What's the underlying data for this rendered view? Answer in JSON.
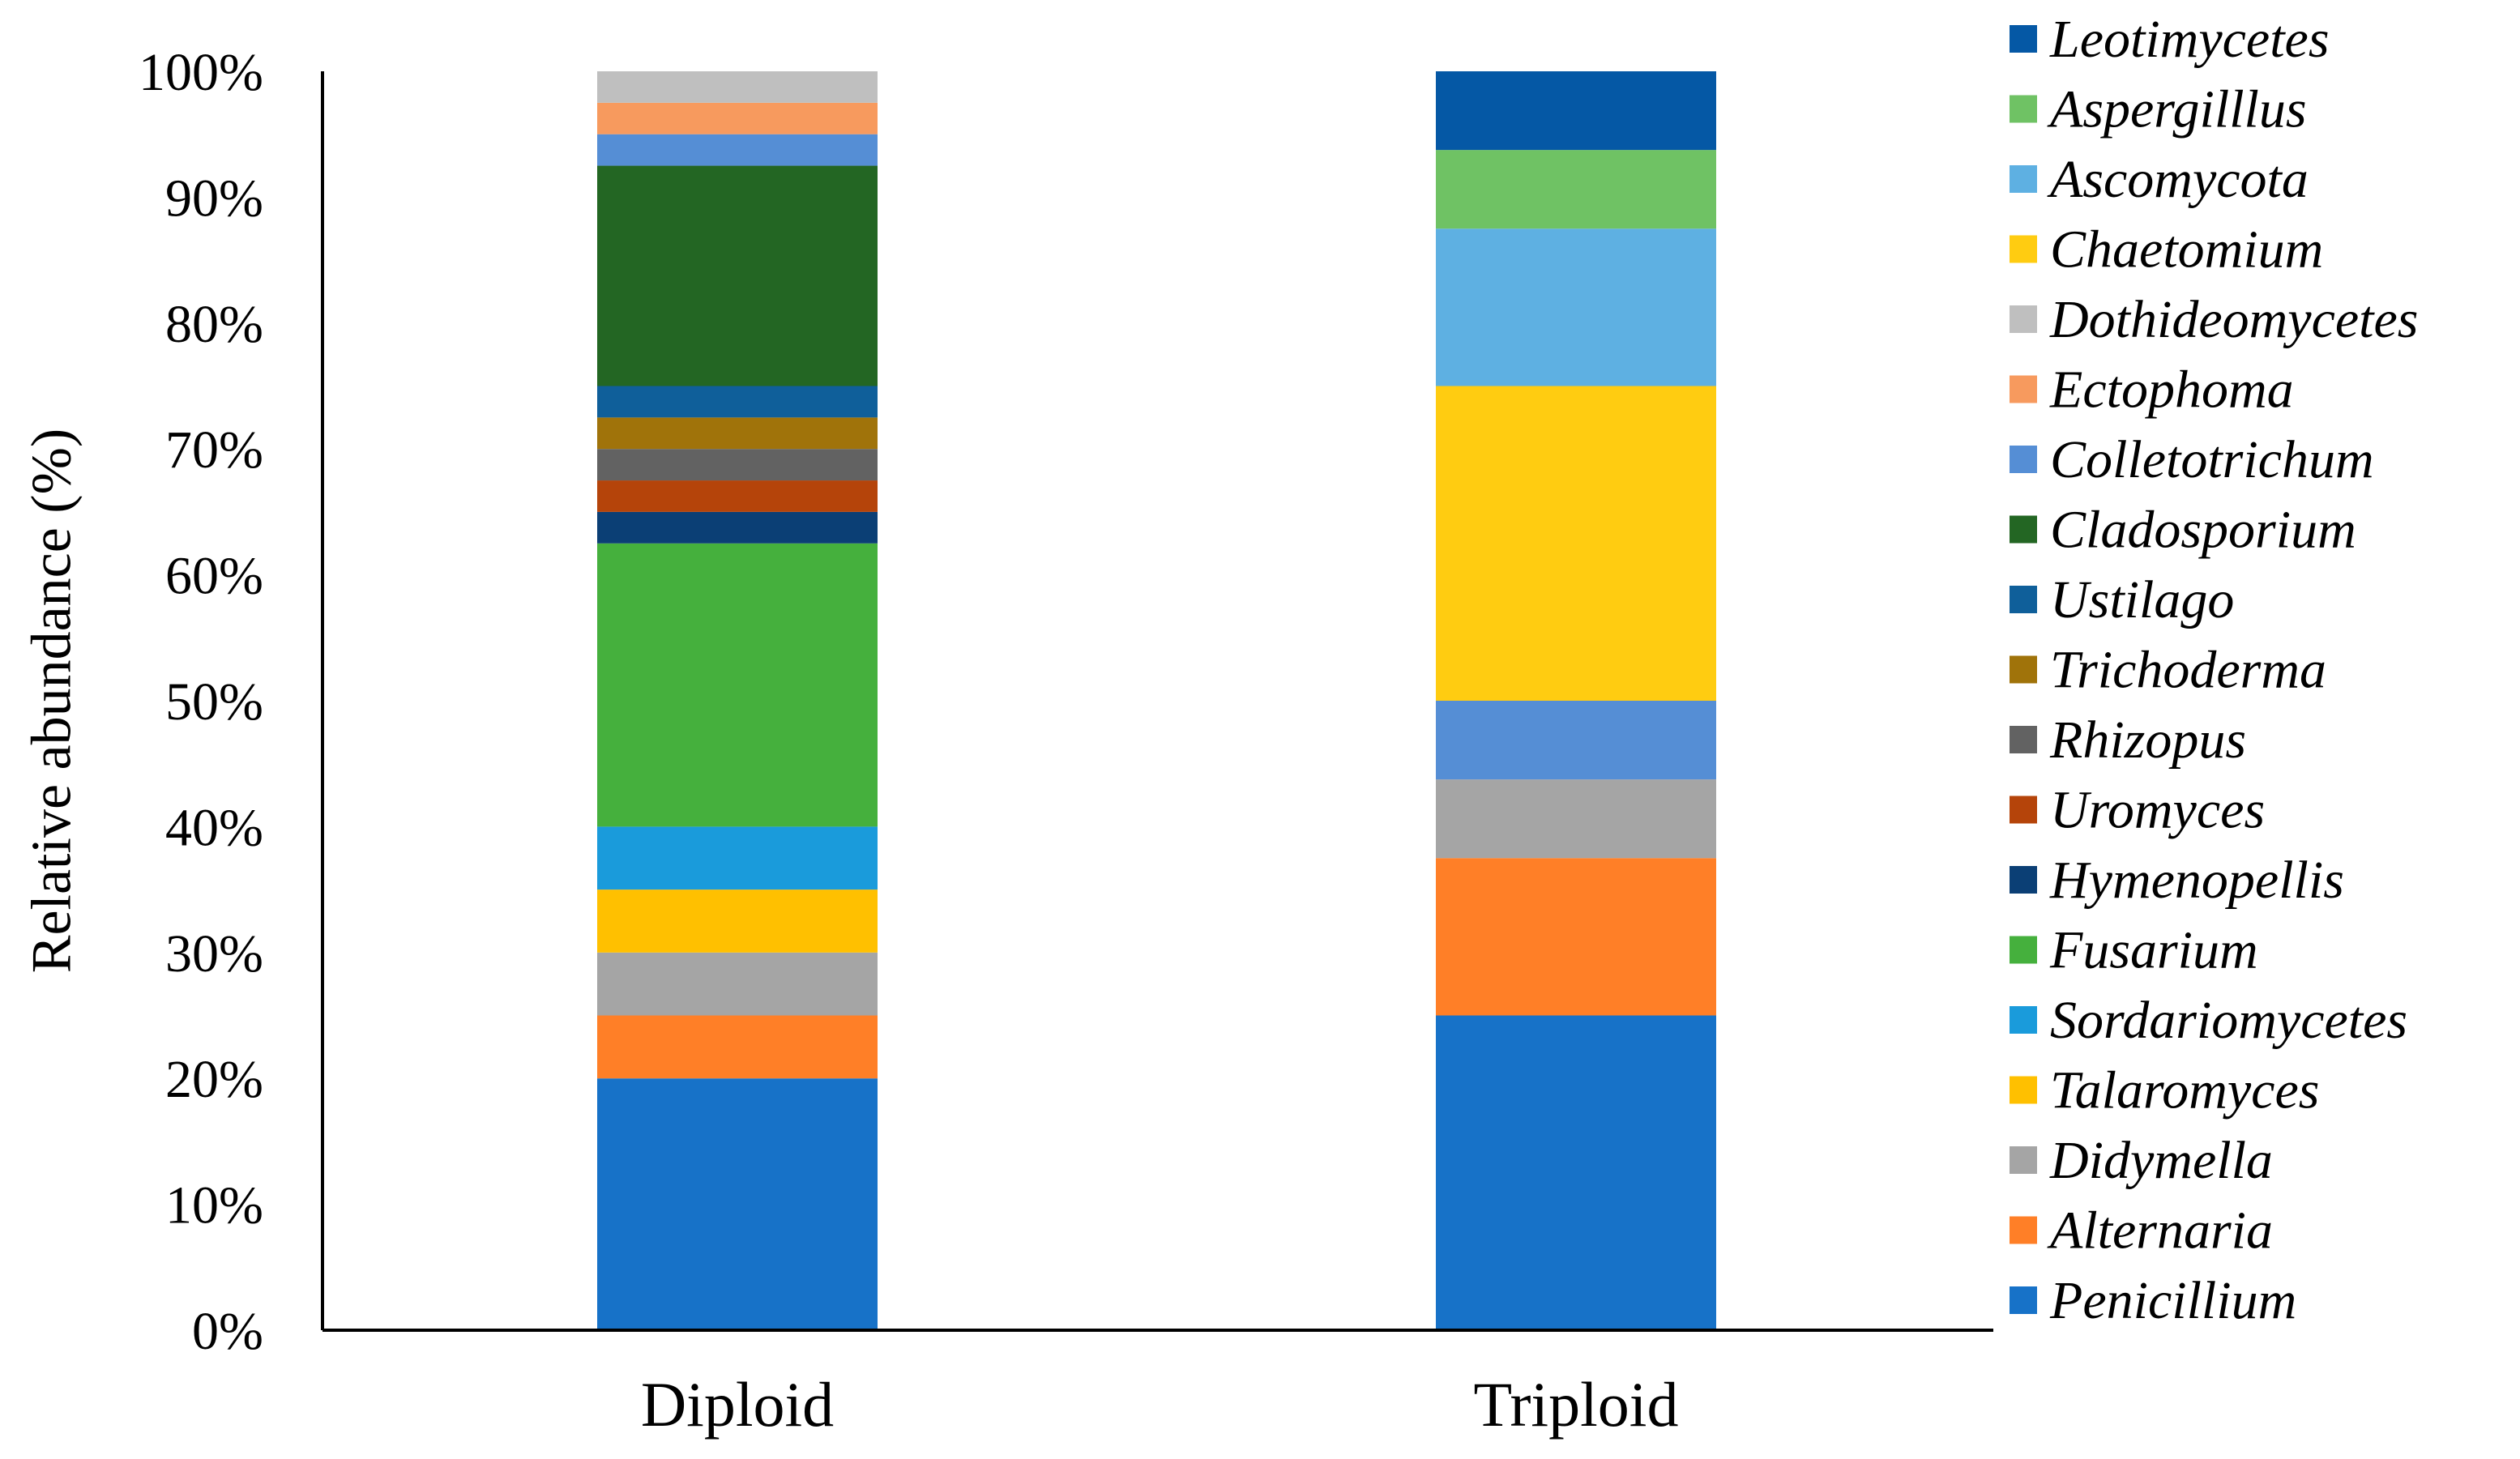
{
  "chart_data": {
    "type": "bar",
    "stacked": true,
    "normalized": true,
    "title": "",
    "xlabel": "",
    "ylabel": "Relative abundance (%)",
    "ylim": [
      0,
      100
    ],
    "yticks": [
      "0%",
      "10%",
      "20%",
      "30%",
      "40%",
      "50%",
      "60%",
      "70%",
      "80%",
      "90%",
      "100%"
    ],
    "grid": false,
    "legend": "right",
    "categories": [
      "Diploid",
      "Triploid"
    ],
    "series": [
      {
        "name": "Penicillium",
        "color": "#1772C8",
        "values": [
          20,
          25
        ]
      },
      {
        "name": "Alternaria",
        "color": "#FF7F27",
        "values": [
          5,
          12.5
        ]
      },
      {
        "name": "Didymella",
        "color": "#A5A5A5",
        "values": [
          5,
          6.25
        ]
      },
      {
        "name": "Talaromyces",
        "color": "#FFC000",
        "values": [
          5,
          0
        ]
      },
      {
        "name": "Sordariomycetes",
        "color": "#1A9BDB",
        "values": [
          5,
          0
        ]
      },
      {
        "name": "Fusarium",
        "color": "#45B03D",
        "values": [
          22.5,
          0
        ]
      },
      {
        "name": "Hymenopellis",
        "color": "#0B3F75",
        "values": [
          2.5,
          0
        ]
      },
      {
        "name": "Uromyces",
        "color": "#B5440A",
        "values": [
          2.5,
          0
        ]
      },
      {
        "name": "Rhizopus",
        "color": "#626262",
        "values": [
          2.5,
          0
        ]
      },
      {
        "name": "Trichoderma",
        "color": "#A0730A",
        "values": [
          2.5,
          0
        ]
      },
      {
        "name": "Ustilago",
        "color": "#0F5F9A",
        "values": [
          2.5,
          0
        ]
      },
      {
        "name": "Cladosporium",
        "color": "#236623",
        "values": [
          17.5,
          0
        ]
      },
      {
        "name": "Colletotrichum",
        "color": "#558ED5",
        "values": [
          2.5,
          6.25
        ]
      },
      {
        "name": "Ectophoma",
        "color": "#F79A5E",
        "values": [
          2.5,
          0
        ]
      },
      {
        "name": "Dothideomycetes",
        "color": "#BFBFBF",
        "values": [
          2.5,
          0
        ]
      },
      {
        "name": "Chaetomium",
        "color": "#FFCC11",
        "values": [
          0,
          25
        ]
      },
      {
        "name": "Ascomycota",
        "color": "#5EB0E2",
        "values": [
          0,
          12.5
        ]
      },
      {
        "name": "Aspergilllus",
        "color": "#6FC264",
        "values": [
          0,
          6.25
        ]
      },
      {
        "name": "Leotimycetes",
        "color": "#0558A5",
        "values": [
          0,
          6.25
        ]
      }
    ]
  }
}
